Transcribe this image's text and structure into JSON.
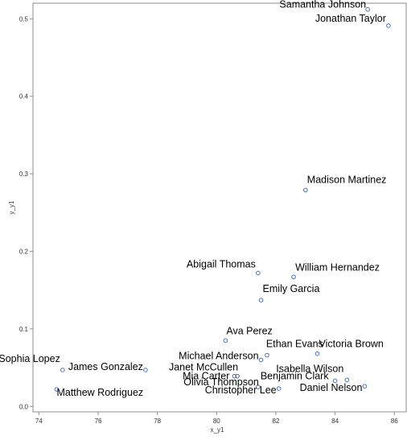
{
  "chart_data": {
    "type": "scatter",
    "xlabel": "x_y1",
    "ylabel": "y_y1",
    "xlim": [
      73.8,
      86.4
    ],
    "ylim": [
      -0.007,
      0.52
    ],
    "xticks": [
      "74",
      "76",
      "78",
      "80",
      "82",
      "84",
      "86"
    ],
    "yticks": [
      "0.0",
      "0.1",
      "0.2",
      "0.3",
      "0.4",
      "0.5"
    ],
    "grid": false,
    "marker_color": "#4a6fbf",
    "points": [
      {
        "label": "Samantha Johnson",
        "x": 85.1,
        "y": 0.512
      },
      {
        "label": "Jonathan Taylor",
        "x": 85.8,
        "y": 0.491
      },
      {
        "label": "Madison Martinez",
        "x": 83.0,
        "y": 0.279
      },
      {
        "label": "Abigail Thomas",
        "x": 81.4,
        "y": 0.172
      },
      {
        "label": "William Hernandez",
        "x": 82.6,
        "y": 0.167
      },
      {
        "label": "Emily Garcia",
        "x": 81.5,
        "y": 0.137
      },
      {
        "label": "Ava Perez",
        "x": 80.3,
        "y": 0.085
      },
      {
        "label": "Ethan Evans",
        "x": 81.7,
        "y": 0.066
      },
      {
        "label": "Victoria Brown",
        "x": 83.4,
        "y": 0.068
      },
      {
        "label": "Michael Anderson",
        "x": 81.5,
        "y": 0.06
      },
      {
        "label": "Sophia Lopez",
        "x": 74.8,
        "y": 0.047
      },
      {
        "label": "Janet McCullen",
        "x": 80.7,
        "y": 0.039
      },
      {
        "label": "James Gonzalez",
        "x": 77.6,
        "y": 0.047
      },
      {
        "label": "Mia Carter",
        "x": 80.6,
        "y": 0.039
      },
      {
        "label": "Isabella Wilson",
        "x": 84.4,
        "y": 0.034
      },
      {
        "label": "Benjamin Clark",
        "x": 84.0,
        "y": 0.033
      },
      {
        "label": "Olivia Thompson",
        "x": 81.4,
        "y": 0.025
      },
      {
        "label": "Daniel Nelson",
        "x": 85.0,
        "y": 0.026
      },
      {
        "label": "Christopher Lee",
        "x": 82.1,
        "y": 0.023
      },
      {
        "label": "Matthew Rodriguez",
        "x": 74.6,
        "y": 0.022
      }
    ]
  }
}
